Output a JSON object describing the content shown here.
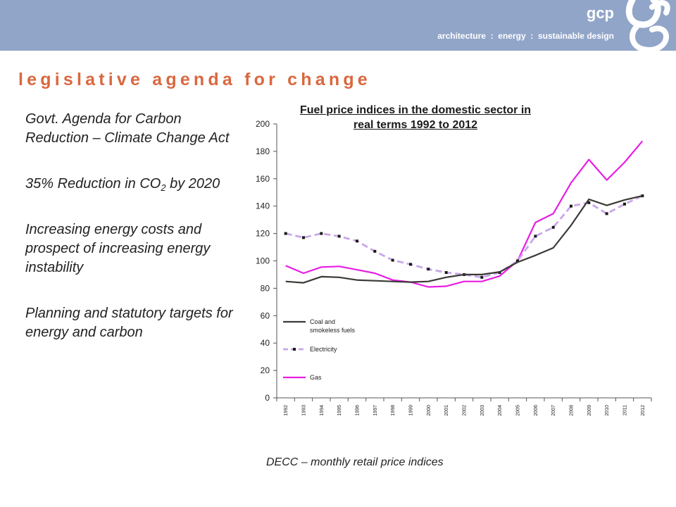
{
  "header": {
    "brand_name": "gcp",
    "tagline": "architecture  :  energy  :  sustainable design",
    "logo_icon": "gcp-swirl-logo",
    "banner_color": "#91a5c8"
  },
  "slide": {
    "title": "legislative agenda for change",
    "title_color": "#d9683f",
    "bullets": [
      {
        "text": "Govt. Agenda for Carbon Reduction – Climate Change Act"
      },
      {
        "pre": "35% Reduction in CO",
        "sub": "2",
        "post": " by 2020"
      },
      {
        "text": "Increasing energy costs and prospect of increasing energy instability"
      },
      {
        "text": "Planning and statutory targets for energy and carbon"
      }
    ],
    "source": "DECC – monthly retail price indices"
  },
  "chart_data": {
    "type": "line",
    "title": "Fuel price indices in the domestic sector in real terms 1992 to 2012",
    "xlabel": "",
    "ylabel": "",
    "ylim": [
      0,
      200
    ],
    "yticks": [
      0,
      20,
      40,
      60,
      80,
      100,
      120,
      140,
      160,
      180,
      200
    ],
    "grid": false,
    "legend_position": "bottom-left",
    "categories": [
      "1992",
      "1993",
      "1994",
      "1995",
      "1996",
      "1997",
      "1998",
      "1999",
      "2000",
      "2001",
      "2002",
      "2003",
      "2004",
      "2005",
      "2006",
      "2007",
      "2008",
      "2009",
      "2010",
      "2011",
      "2012"
    ],
    "series": [
      {
        "name": "Coal and smokeless fuels",
        "color": "#3b3a36",
        "style": "solid",
        "values": [
          85,
          84,
          88.5,
          88,
          86,
          85.5,
          85,
          84.5,
          85,
          88,
          90,
          90,
          92,
          99,
          104,
          109.5,
          126,
          145,
          140.5,
          144.5,
          147.5
        ]
      },
      {
        "name": "Electricity",
        "color": "#c9a6ea",
        "marker_color": "#1a1a1a",
        "style": "dashed",
        "values": [
          120,
          117,
          120,
          118,
          114.5,
          107,
          100.5,
          97.5,
          94,
          91.5,
          90,
          88,
          91.5,
          100,
          118,
          124.5,
          140,
          142.5,
          134.5,
          141.5,
          147.5
        ]
      },
      {
        "name": "Gas",
        "color": "#e81ee4",
        "style": "solid",
        "values": [
          96.5,
          91,
          95.5,
          96,
          93.5,
          91,
          86,
          84.5,
          81,
          81.5,
          85,
          85,
          89,
          100,
          128,
          134.5,
          157,
          174,
          159,
          172,
          187.5
        ]
      }
    ]
  }
}
